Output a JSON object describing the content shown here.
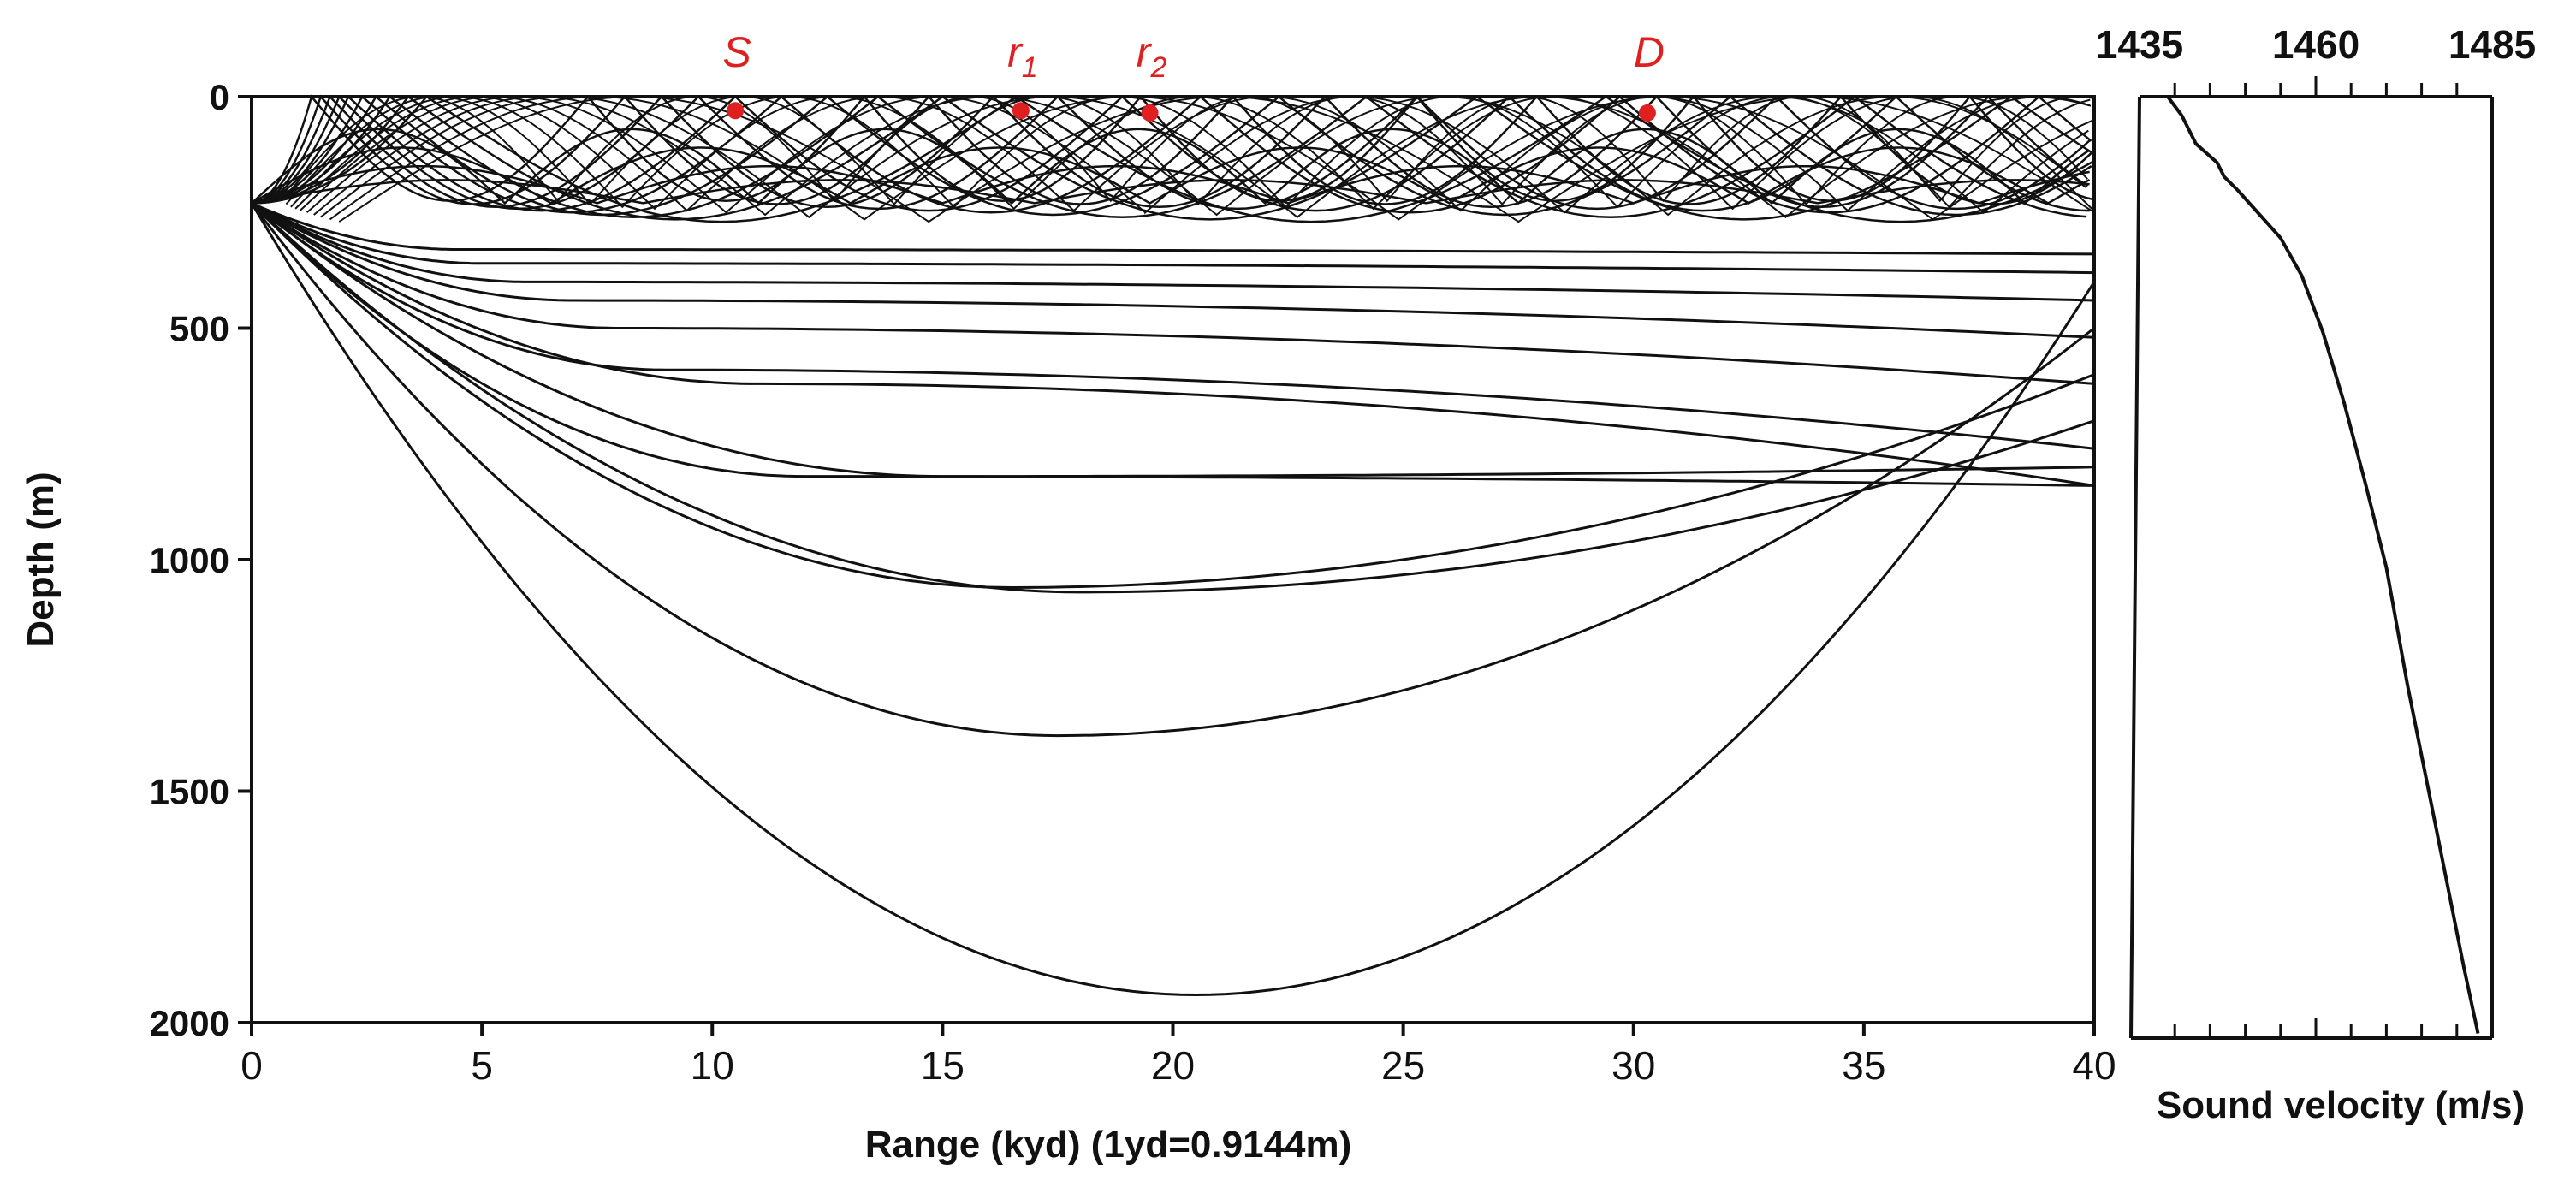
{
  "chart_data": [
    {
      "type": "line",
      "title": "",
      "xlabel": "Range (kyd) (1yd=0.9144m)",
      "ylabel": "Depth (m)",
      "xlim": [
        0,
        40
      ],
      "ylim": [
        0,
        2000
      ],
      "y_inverted": true,
      "xticks": [
        "0",
        "5",
        "10",
        "15",
        "20",
        "25",
        "30",
        "35",
        "40"
      ],
      "yticks": [
        "0",
        "500",
        "1000",
        "1500",
        "2000"
      ],
      "grid": false,
      "source_depth": 230,
      "markers": [
        {
          "label": "S",
          "sub": "",
          "x": 10.5,
          "y": 30
        },
        {
          "label": "r",
          "sub": "1",
          "x": 16.7,
          "y": 30
        },
        {
          "label": "r",
          "sub": "2",
          "x": 19.5,
          "y": 35
        },
        {
          "label": "D",
          "sub": "",
          "x": 30.3,
          "y": 35
        }
      ],
      "deep_rays": [
        {
          "turn_x": 20.5,
          "turn_depth": 1940,
          "end_x": 40,
          "end_depth": 400
        },
        {
          "turn_x": 17.5,
          "turn_depth": 1380,
          "end_x": 40,
          "end_depth": 500
        },
        {
          "turn_x": 18.0,
          "turn_depth": 1070,
          "end_x": 40,
          "end_depth": 700
        },
        {
          "turn_x": 16.5,
          "turn_depth": 1060,
          "end_x": 40,
          "end_depth": 600
        },
        {
          "turn_x": 15.0,
          "turn_depth": 820,
          "end_x": 40,
          "end_depth": 800
        },
        {
          "turn_x": 12.0,
          "turn_depth": 820,
          "end_x": 40,
          "end_depth": 840
        },
        {
          "turn_x": 11.0,
          "turn_depth": 620,
          "end_x": 40,
          "end_depth": 840
        },
        {
          "turn_x": 9.0,
          "turn_depth": 590,
          "end_x": 40,
          "end_depth": 760
        },
        {
          "turn_x": 8.0,
          "turn_depth": 500,
          "end_x": 40,
          "end_depth": 620
        },
        {
          "turn_x": 7.0,
          "turn_depth": 440,
          "end_x": 40,
          "end_depth": 520
        },
        {
          "turn_x": 6.0,
          "turn_depth": 400,
          "end_x": 40,
          "end_depth": 440
        },
        {
          "turn_x": 5.0,
          "turn_depth": 360,
          "end_x": 40,
          "end_depth": 380
        },
        {
          "turn_x": 4.5,
          "turn_depth": 330,
          "end_x": 40,
          "end_depth": 340
        }
      ],
      "surface_rays": [
        {
          "first_hit": 1.3,
          "period": 6.0,
          "turn_depth": 225
        },
        {
          "first_hit": 1.5,
          "period": 6.6,
          "turn_depth": 232
        },
        {
          "first_hit": 1.7,
          "period": 7.2,
          "turn_depth": 238
        },
        {
          "first_hit": 1.9,
          "period": 7.8,
          "turn_depth": 242
        },
        {
          "first_hit": 2.1,
          "period": 8.4,
          "turn_depth": 246
        },
        {
          "first_hit": 2.4,
          "period": 9.1,
          "turn_depth": 250
        },
        {
          "first_hit": 2.7,
          "period": 9.8,
          "turn_depth": 255
        },
        {
          "first_hit": 3.0,
          "period": 10.6,
          "turn_depth": 260
        },
        {
          "first_hit": 3.4,
          "period": 11.6,
          "turn_depth": 265
        },
        {
          "first_hit": 3.8,
          "period": 12.8,
          "turn_depth": 270
        }
      ],
      "trapped_rays": [
        {
          "period": 5.5,
          "top_depth": 70
        },
        {
          "period": 6.5,
          "top_depth": 110
        },
        {
          "period": 7.5,
          "top_depth": 150
        },
        {
          "period": 8.5,
          "top_depth": 180
        }
      ]
    },
    {
      "type": "line",
      "title": "",
      "xlabel": "Sound velocity (m/s)",
      "ylabel": "",
      "xlim": [
        1435,
        1485
      ],
      "xticks": [
        "1435",
        "1460",
        "1485"
      ],
      "ylim": [
        0,
        2000
      ],
      "y_inverted": true,
      "series": [
        {
          "x": [
            1439,
            1441,
            1443,
            1446,
            1447,
            1449,
            1452,
            1455,
            1458,
            1461,
            1464,
            1467,
            1470,
            1473,
            1477,
            1481,
            1483
          ],
          "y": [
            0,
            40,
            100,
            140,
            170,
            200,
            250,
            300,
            380,
            500,
            650,
            820,
            1000,
            1250,
            1550,
            1850,
            1990
          ]
        }
      ]
    }
  ]
}
